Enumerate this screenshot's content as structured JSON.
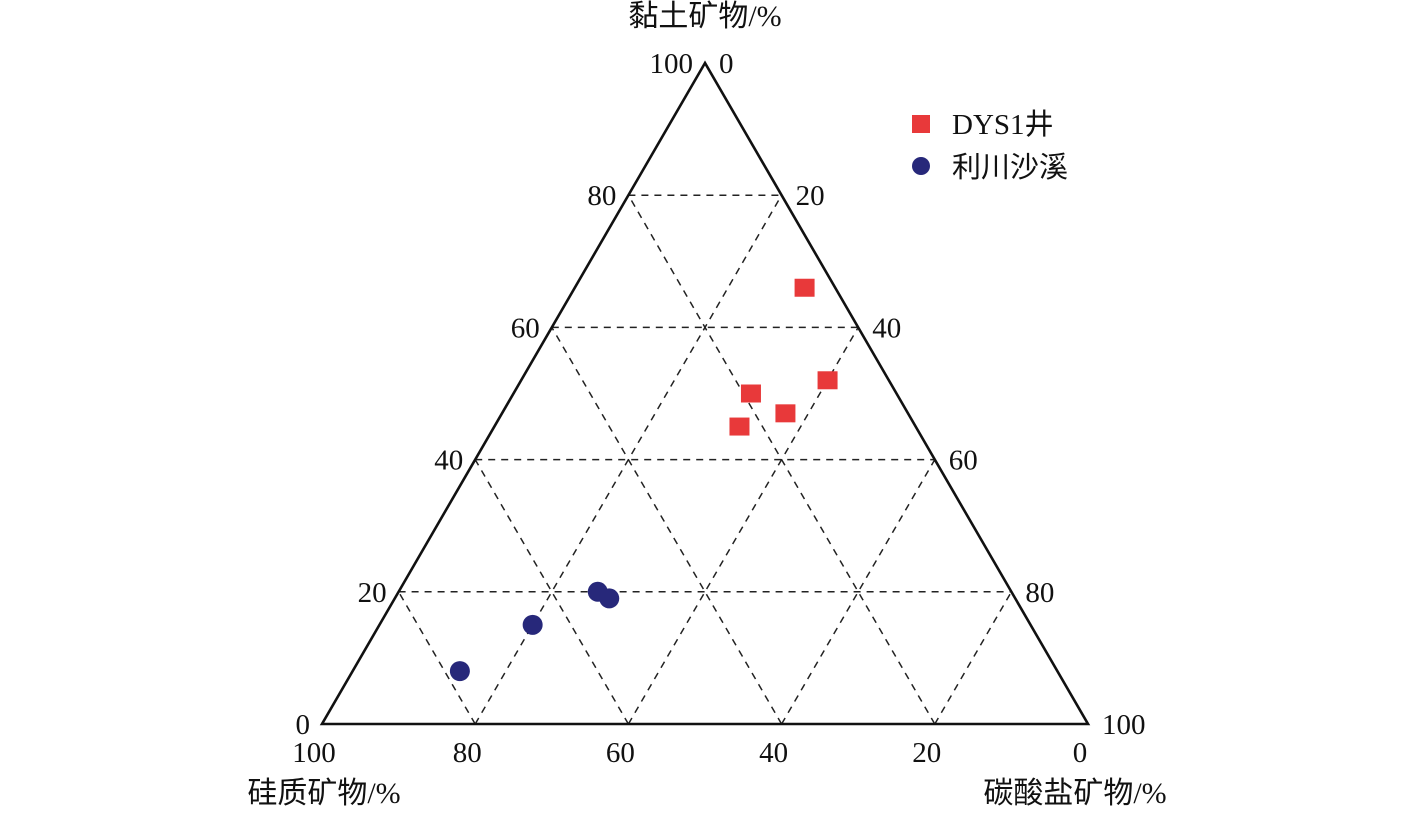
{
  "chart_data": {
    "type": "scatter",
    "subtype": "ternary",
    "axes": {
      "top": {
        "label": "黏土矿物/%"
      },
      "left": {
        "label": "硅质矿物/%"
      },
      "right": {
        "label": "碳酸盐矿物/%"
      }
    },
    "range": [
      0,
      100
    ],
    "grid": true,
    "grid_step": 20,
    "tick_labels": {
      "clay": [
        "0",
        "20",
        "40",
        "60",
        "80",
        "100"
      ],
      "carbonate": [
        "0",
        "20",
        "40",
        "60",
        "80",
        "100"
      ],
      "silica": [
        "100",
        "80",
        "60",
        "40",
        "20",
        "0"
      ]
    },
    "legend_position": "top-right",
    "series": [
      {
        "name": "DYS1井",
        "marker": "square",
        "color": "#e8393a",
        "points": [
          {
            "clay": 66,
            "carbonate": 30,
            "silica": 4
          },
          {
            "clay": 52,
            "carbonate": 40,
            "silica": 8
          },
          {
            "clay": 50,
            "carbonate": 31,
            "silica": 19
          },
          {
            "clay": 47,
            "carbonate": 37,
            "silica": 16
          },
          {
            "clay": 45,
            "carbonate": 32,
            "silica": 23
          }
        ]
      },
      {
        "name": "利川沙溪",
        "marker": "circle",
        "color": "#27287a",
        "points": [
          {
            "clay": 20,
            "carbonate": 26,
            "silica": 54
          },
          {
            "clay": 19,
            "carbonate": 28,
            "silica": 53
          },
          {
            "clay": 15,
            "carbonate": 20,
            "silica": 65
          },
          {
            "clay": 8,
            "carbonate": 14,
            "silica": 78
          }
        ]
      }
    ]
  }
}
